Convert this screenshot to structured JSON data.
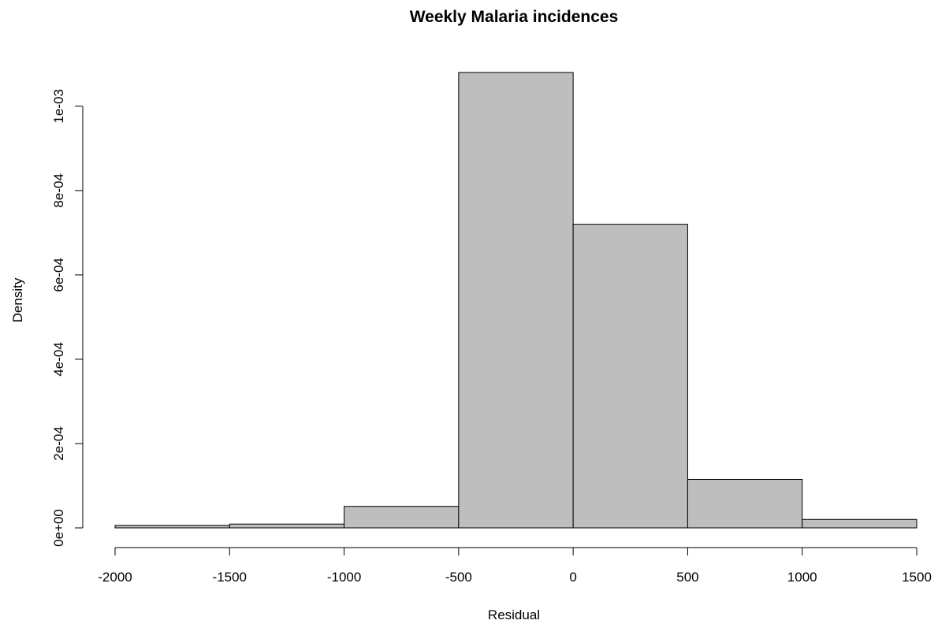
{
  "chart_data": {
    "type": "bar",
    "title": "Weekly Malaria incidences",
    "xlabel": "Residual",
    "ylabel": "Density",
    "bins": [
      {
        "start": -2000,
        "end": -1500,
        "density": 6e-06
      },
      {
        "start": -1500,
        "end": -1000,
        "density": 9e-06
      },
      {
        "start": -1000,
        "end": -500,
        "density": 5.1e-05
      },
      {
        "start": -500,
        "end": 0,
        "density": 0.00108
      },
      {
        "start": 0,
        "end": 500,
        "density": 0.00072
      },
      {
        "start": 500,
        "end": 1000,
        "density": 0.000115
      },
      {
        "start": 1000,
        "end": 1500,
        "density": 2e-05
      }
    ],
    "x_ticks": [
      {
        "value": -2000,
        "label": "-2000"
      },
      {
        "value": -1500,
        "label": "-1500"
      },
      {
        "value": -1000,
        "label": "-1000"
      },
      {
        "value": -500,
        "label": "-500"
      },
      {
        "value": 0,
        "label": "0"
      },
      {
        "value": 500,
        "label": "500"
      },
      {
        "value": 1000,
        "label": "1000"
      },
      {
        "value": 1500,
        "label": "1500"
      }
    ],
    "y_ticks": [
      {
        "value": 0,
        "label": "0e+00"
      },
      {
        "value": 0.0002,
        "label": "2e-04"
      },
      {
        "value": 0.0004,
        "label": "4e-04"
      },
      {
        "value": 0.0006,
        "label": "6e-04"
      },
      {
        "value": 0.0008,
        "label": "8e-04"
      },
      {
        "value": 0.001,
        "label": "1e-03"
      }
    ],
    "xlim": [
      -2000,
      1500
    ],
    "ylim": [
      0,
      0.00108
    ],
    "bar_color": "#bebebe",
    "grid": false,
    "legend": "none"
  }
}
